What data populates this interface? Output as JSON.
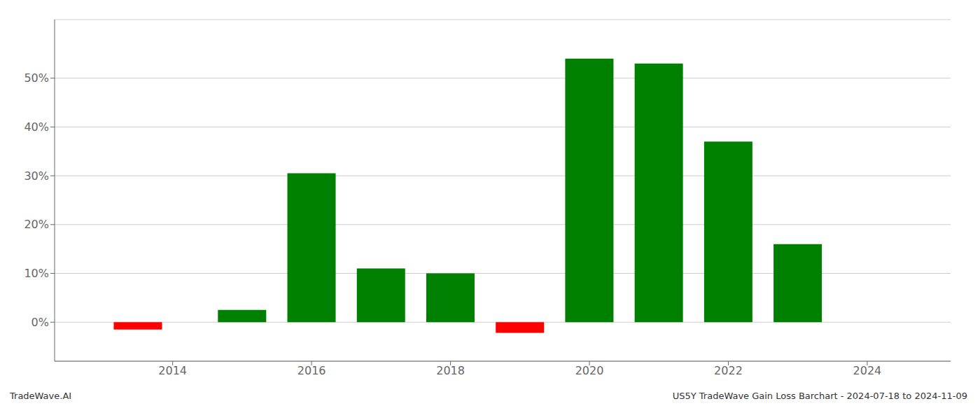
{
  "chart_data": {
    "type": "bar",
    "x": [
      2013.5,
      2015.0,
      2016.0,
      2017.0,
      2018.0,
      2019.0,
      2020.0,
      2021.0,
      2022.0,
      2023.0
    ],
    "values": [
      -1.5,
      2.5,
      30.5,
      11.0,
      10.0,
      -2.2,
      54.0,
      53.0,
      37.0,
      16.0
    ],
    "colors": [
      "#ff0000",
      "#008000",
      "#008000",
      "#008000",
      "#008000",
      "#ff0000",
      "#008000",
      "#008000",
      "#008000",
      "#008000"
    ],
    "xlim": [
      2012.3,
      2025.2
    ],
    "ylim": [
      -8,
      62
    ],
    "xticks": [
      2014,
      2016,
      2018,
      2020,
      2022,
      2024
    ],
    "yticks": [
      {
        "value": 0,
        "label": "0%"
      },
      {
        "value": 10,
        "label": "10%"
      },
      {
        "value": 20,
        "label": "20%"
      },
      {
        "value": 30,
        "label": "30%"
      },
      {
        "value": 40,
        "label": "40%"
      },
      {
        "value": 50,
        "label": "50%"
      }
    ],
    "grid": true,
    "annotations": [
      "TradeWave.AI",
      "US5Y TradeWave Gain Loss Barchart - 2024-07-18 to 2024-11-09"
    ]
  }
}
